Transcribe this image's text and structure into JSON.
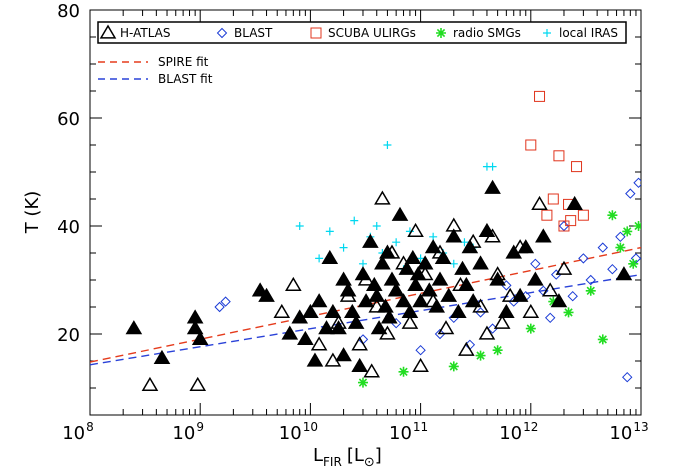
{
  "chart_data": {
    "type": "scatter",
    "title": "",
    "xlabel": "L",
    "xlabel_sub": "FIR",
    "xlabel_unit_open": "[L",
    "xlabel_unit_close": "]",
    "ylabel": "T (K)",
    "x_scale": "log",
    "xlim": [
      100000000.0,
      10000000000000.0
    ],
    "ylim": [
      5,
      80
    ],
    "x_ticks": [
      {
        "base": "10",
        "exp": "8",
        "value": 100000000.0
      },
      {
        "base": "10",
        "exp": "9",
        "value": 1000000000.0
      },
      {
        "base": "10",
        "exp": "10",
        "value": 10000000000.0
      },
      {
        "base": "10",
        "exp": "11",
        "value": 100000000000.0
      },
      {
        "base": "10",
        "exp": "12",
        "value": 1000000000000.0
      },
      {
        "base": "10",
        "exp": "13",
        "value": 10000000000000.0
      }
    ],
    "y_ticks": [
      "20",
      "40",
      "60",
      "80"
    ],
    "legend_placement": "top",
    "grid": false,
    "series": [
      {
        "name": "H-ATLAS",
        "marker": "triangle-open",
        "color": "#000000",
        "points": [
          [
            350000000.0,
            10.5
          ],
          [
            950000000.0,
            10.5
          ],
          [
            5500000000.0,
            24
          ],
          [
            7000000000.0,
            29
          ],
          [
            12000000000.0,
            18
          ],
          [
            16000000000.0,
            15
          ],
          [
            18000000000.0,
            22
          ],
          [
            22000000000.0,
            27
          ],
          [
            28000000000.0,
            18
          ],
          [
            32000000000.0,
            30
          ],
          [
            36000000000.0,
            13
          ],
          [
            40000000000.0,
            25
          ],
          [
            45000000000.0,
            45
          ],
          [
            50000000000.0,
            20
          ],
          [
            55000000000.0,
            35
          ],
          [
            60000000000.0,
            28
          ],
          [
            70000000000.0,
            33
          ],
          [
            80000000000.0,
            22
          ],
          [
            90000000000.0,
            39
          ],
          [
            100000000000.0,
            14
          ],
          [
            110000000000.0,
            31
          ],
          [
            130000000000.0,
            26
          ],
          [
            150000000000.0,
            35
          ],
          [
            170000000000.0,
            21
          ],
          [
            200000000000.0,
            40
          ],
          [
            230000000000.0,
            29
          ],
          [
            260000000000.0,
            17
          ],
          [
            300000000000.0,
            37
          ],
          [
            350000000000.0,
            25
          ],
          [
            400000000000.0,
            20
          ],
          [
            450000000000.0,
            38
          ],
          [
            500000000000.0,
            31
          ],
          [
            550000000000.0,
            22
          ],
          [
            650000000000.0,
            27
          ],
          [
            800000000000.0,
            36
          ],
          [
            1000000000000.0,
            24
          ],
          [
            1200000000000.0,
            44
          ],
          [
            1500000000000.0,
            28
          ],
          [
            2000000000000.0,
            32
          ]
        ]
      },
      {
        "name": "H-ATLAS",
        "marker": "triangle-filled",
        "color": "#000000",
        "points": [
          [
            250000000.0,
            21
          ],
          [
            450000000.0,
            15.5
          ],
          [
            900000000.0,
            21
          ],
          [
            900000000.0,
            23
          ],
          [
            1000000000.0,
            19
          ],
          [
            3500000000.0,
            28
          ],
          [
            4000000000.0,
            27
          ],
          [
            6500000000.0,
            20
          ],
          [
            8000000000.0,
            23
          ],
          [
            9000000000.0,
            19
          ],
          [
            10000000000.0,
            24
          ],
          [
            11000000000.0,
            15
          ],
          [
            12000000000.0,
            26
          ],
          [
            14000000000.0,
            21
          ],
          [
            15000000000.0,
            34
          ],
          [
            16000000000.0,
            24
          ],
          [
            18000000000.0,
            21
          ],
          [
            20000000000.0,
            16
          ],
          [
            20000000000.0,
            30
          ],
          [
            22000000000.0,
            28
          ],
          [
            24000000000.0,
            24
          ],
          [
            26000000000.0,
            22
          ],
          [
            28000000000.0,
            14
          ],
          [
            30000000000.0,
            31
          ],
          [
            32000000000.0,
            26
          ],
          [
            35000000000.0,
            37
          ],
          [
            38000000000.0,
            29
          ],
          [
            40000000000.0,
            27
          ],
          [
            42000000000.0,
            21
          ],
          [
            45000000000.0,
            33
          ],
          [
            48000000000.0,
            25
          ],
          [
            50000000000.0,
            35
          ],
          [
            52000000000.0,
            23
          ],
          [
            55000000000.0,
            30
          ],
          [
            60000000000.0,
            28
          ],
          [
            65000000000.0,
            42
          ],
          [
            70000000000.0,
            26
          ],
          [
            75000000000.0,
            32
          ],
          [
            80000000000.0,
            24
          ],
          [
            85000000000.0,
            34
          ],
          [
            90000000000.0,
            29
          ],
          [
            95000000000.0,
            31
          ],
          [
            100000000000.0,
            26
          ],
          [
            110000000000.0,
            33
          ],
          [
            120000000000.0,
            28
          ],
          [
            130000000000.0,
            36
          ],
          [
            140000000000.0,
            25
          ],
          [
            150000000000.0,
            30
          ],
          [
            160000000000.0,
            34
          ],
          [
            180000000000.0,
            27
          ],
          [
            200000000000.0,
            38
          ],
          [
            220000000000.0,
            24
          ],
          [
            240000000000.0,
            32
          ],
          [
            260000000000.0,
            29
          ],
          [
            280000000000.0,
            36
          ],
          [
            300000000000.0,
            26
          ],
          [
            350000000000.0,
            33
          ],
          [
            400000000000.0,
            39
          ],
          [
            450000000000.0,
            47
          ],
          [
            500000000000.0,
            30
          ],
          [
            600000000000.0,
            24
          ],
          [
            700000000000.0,
            35
          ],
          [
            800000000000.0,
            27
          ],
          [
            900000000000.0,
            36
          ],
          [
            1100000000000.0,
            30
          ],
          [
            1300000000000.0,
            38
          ],
          [
            1800000000000.0,
            26
          ],
          [
            2500000000000.0,
            44
          ],
          [
            7000000000000.0,
            31
          ]
        ]
      },
      {
        "name": "BLAST",
        "marker": "diamond",
        "color": "#1a3bd6",
        "points": [
          [
            1500000000.0,
            25
          ],
          [
            1700000000.0,
            26
          ],
          [
            30000000000.0,
            19
          ],
          [
            60000000000.0,
            22
          ],
          [
            100000000000.0,
            17
          ],
          [
            150000000000.0,
            20
          ],
          [
            200000000000.0,
            23
          ],
          [
            280000000000.0,
            18
          ],
          [
            350000000000.0,
            24
          ],
          [
            450000000000.0,
            21
          ],
          [
            600000000000.0,
            29
          ],
          [
            700000000000.0,
            26
          ],
          [
            900000000000.0,
            27
          ],
          [
            1100000000000.0,
            33
          ],
          [
            1300000000000.0,
            28
          ],
          [
            1500000000000.0,
            23
          ],
          [
            1700000000000.0,
            31
          ],
          [
            2000000000000.0,
            40
          ],
          [
            2400000000000.0,
            27
          ],
          [
            3000000000000.0,
            34
          ],
          [
            3500000000000.0,
            30
          ],
          [
            4500000000000.0,
            36
          ],
          [
            5500000000000.0,
            32
          ],
          [
            6500000000000.0,
            38
          ],
          [
            7500000000000.0,
            12
          ],
          [
            8000000000000.0,
            46
          ],
          [
            9000000000000.0,
            34
          ],
          [
            9500000000000.0,
            48
          ]
        ]
      },
      {
        "name": "SCUBA ULIRGs",
        "marker": "square",
        "color": "#e0341c",
        "points": [
          [
            1000000000000.0,
            55
          ],
          [
            1200000000000.0,
            64
          ],
          [
            1400000000000.0,
            42
          ],
          [
            1600000000000.0,
            45
          ],
          [
            1800000000000.0,
            53
          ],
          [
            2000000000000.0,
            40
          ],
          [
            2300000000000.0,
            41
          ],
          [
            2600000000000.0,
            51
          ],
          [
            3000000000000.0,
            42
          ],
          [
            2200000000000.0,
            44
          ]
        ]
      },
      {
        "name": "radio SMGs",
        "marker": "asterisk",
        "color": "#22dd22",
        "points": [
          [
            30000000000.0,
            11
          ],
          [
            70000000000.0,
            13
          ],
          [
            200000000000.0,
            14
          ],
          [
            350000000000.0,
            16
          ],
          [
            500000000000.0,
            17
          ],
          [
            1000000000000.0,
            21
          ],
          [
            1600000000000.0,
            26
          ],
          [
            2200000000000.0,
            24
          ],
          [
            3500000000000.0,
            28
          ],
          [
            4500000000000.0,
            19
          ],
          [
            5500000000000.0,
            42
          ],
          [
            6500000000000.0,
            36
          ],
          [
            7500000000000.0,
            39
          ],
          [
            8500000000000.0,
            33
          ],
          [
            9500000000000.0,
            40
          ]
        ]
      },
      {
        "name": "local IRAS",
        "marker": "plus",
        "color": "#00d8f0",
        "points": [
          [
            8000000000.0,
            40
          ],
          [
            12000000000.0,
            34
          ],
          [
            15000000000.0,
            39
          ],
          [
            20000000000.0,
            36
          ],
          [
            25000000000.0,
            41
          ],
          [
            30000000000.0,
            33
          ],
          [
            35000000000.0,
            38
          ],
          [
            40000000000.0,
            40
          ],
          [
            45000000000.0,
            35
          ],
          [
            50000000000.0,
            55
          ],
          [
            60000000000.0,
            37
          ],
          [
            70000000000.0,
            32
          ],
          [
            80000000000.0,
            39
          ],
          [
            100000000000.0,
            34
          ],
          [
            130000000000.0,
            38
          ],
          [
            160000000000.0,
            35
          ],
          [
            200000000000.0,
            33
          ],
          [
            250000000000.0,
            37
          ],
          [
            300000000000.0,
            36
          ],
          [
            400000000000.0,
            51
          ],
          [
            450000000000.0,
            51
          ]
        ]
      }
    ],
    "fits": [
      {
        "name": "SPIRE fit",
        "color": "#e53b1c",
        "dash": "dashed",
        "x0": 100000000.0,
        "y0": 14.8,
        "x1": 10000000000000.0,
        "y1": 36
      },
      {
        "name": "BLAST fit",
        "color": "#2a42d8",
        "dash": "dashed",
        "x0": 100000000.0,
        "y0": 14.3,
        "x1": 10000000000000.0,
        "y1": 31
      }
    ]
  }
}
